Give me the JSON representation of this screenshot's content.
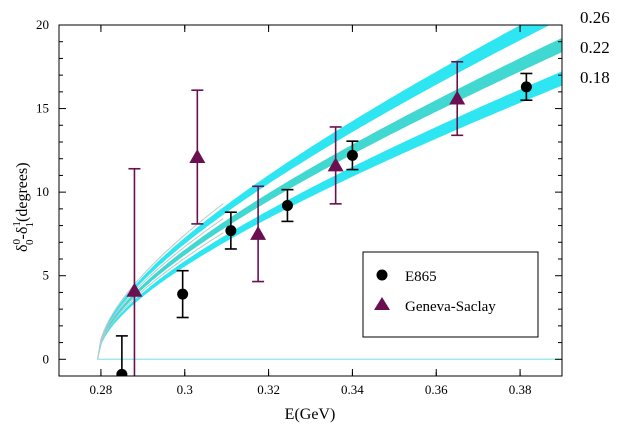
{
  "chart_data": {
    "type": "scatter",
    "xlabel": "E(GeV)",
    "ylabel_main": "δ",
    "ylabel_sup1": "0",
    "ylabel_sub1": "0",
    "ylabel_mid": "-δ",
    "ylabel_sup2": "1",
    "ylabel_sub2": "1",
    "ylabel_tail": "(degrees)",
    "xlim": [
      0.27,
      0.39
    ],
    "ylim": [
      -1,
      20
    ],
    "xticks": [
      0.28,
      0.3,
      0.32,
      0.34,
      0.36,
      0.38
    ],
    "xtick_labels": [
      "0.28",
      "0.3",
      "0.32",
      "0.34",
      "0.36",
      "0.38"
    ],
    "yticks": [
      0,
      5,
      10,
      15,
      20
    ],
    "ytick_labels": [
      "0",
      "5",
      "10",
      "15",
      "20"
    ],
    "legend_position": "lower-right",
    "series": [
      {
        "name": "E865",
        "marker": "circle",
        "color": "#000000",
        "points": [
          {
            "x": 0.285,
            "y": -0.9,
            "err_lo": 2.3,
            "err_hi": 2.3
          },
          {
            "x": 0.2995,
            "y": 3.9,
            "err_lo": 1.4,
            "err_hi": 1.4
          },
          {
            "x": 0.311,
            "y": 7.7,
            "err_lo": 1.1,
            "err_hi": 1.1
          },
          {
            "x": 0.3245,
            "y": 9.2,
            "err_lo": 0.95,
            "err_hi": 0.95
          },
          {
            "x": 0.34,
            "y": 12.2,
            "err_lo": 0.85,
            "err_hi": 0.85
          },
          {
            "x": 0.3815,
            "y": 16.3,
            "err_lo": 0.8,
            "err_hi": 0.8
          }
        ]
      },
      {
        "name": "Geneva-Saclay",
        "marker": "triangle",
        "color": "#6a1050",
        "points": [
          {
            "x": 0.288,
            "y": 4.1,
            "err_lo": 7.3,
            "err_hi": 7.3
          },
          {
            "x": 0.303,
            "y": 12.1,
            "err_lo": 4.0,
            "err_hi": 4.0
          },
          {
            "x": 0.3175,
            "y": 7.5,
            "err_lo": 2.85,
            "err_hi": 2.85
          },
          {
            "x": 0.336,
            "y": 11.6,
            "err_lo": 2.3,
            "err_hi": 2.3
          },
          {
            "x": 0.365,
            "y": 15.6,
            "err_lo": 2.2,
            "err_hi": 2.2
          }
        ]
      }
    ],
    "bands": [
      {
        "label": "0.26",
        "y_at_end": [
          20.4,
          21.3
        ],
        "color": "#2ee6f2"
      },
      {
        "label": "0.22",
        "y_at_end": [
          18.4,
          19.2
        ],
        "color": "#40d8d0"
      },
      {
        "label": "0.18",
        "y_at_end": [
          16.4,
          17.2
        ],
        "color": "#2ee6f2"
      }
    ],
    "band_x_start": 0.2792,
    "band_sqrt_fraction": 0.62,
    "baseline_color": "#8ee8ee",
    "guide_color": "#b8c8c8"
  }
}
